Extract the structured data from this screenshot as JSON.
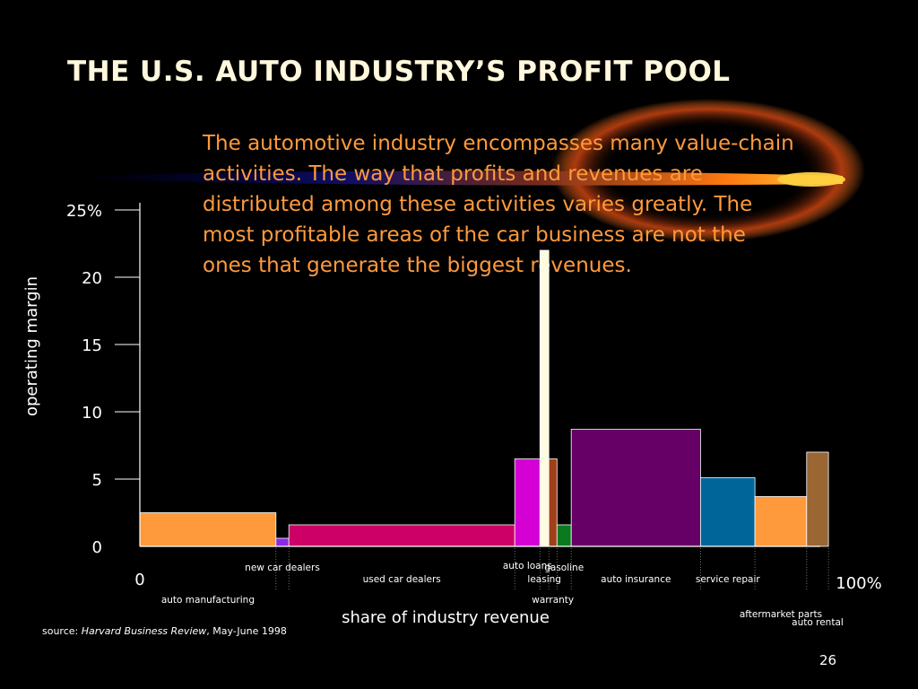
{
  "slide": {
    "title": "THE U.S. AUTO INDUSTRY’S PROFIT POOL",
    "intro": "The automotive industry encompasses many value-chain activities.  The way that profits and revenues are distributed among these activities varies greatly.  The most profitable areas of the car business are not the ones that generate the biggest revenues.",
    "source_prefix": "source: ",
    "source_publication": "Harvard Business Review",
    "source_suffix": ", May-June 1998",
    "page_number": "26"
  },
  "chart_data": {
    "type": "bar",
    "subtype": "variable-width (profit pool)",
    "xlabel": "share of industry revenue",
    "ylabel": "operating margin",
    "xlim": [
      0,
      100
    ],
    "ylim": [
      0,
      25
    ],
    "x_tick_labels": [
      "0",
      "100%"
    ],
    "y_ticks": [
      0,
      5,
      10,
      15,
      20,
      25
    ],
    "y_tick_labels": [
      "0",
      "5",
      "10",
      "15",
      "20",
      "25%"
    ],
    "grid": false,
    "legend": "none",
    "segments": [
      {
        "label": "auto manufacturing",
        "start": 0,
        "share": 20.0,
        "margin": 2.5,
        "color": "#ff9a3c",
        "label_row": 2
      },
      {
        "label": "new car dealers",
        "start": 20.0,
        "share": 1.9,
        "margin": 0.6,
        "color": "#8a2be2",
        "label_row": 0
      },
      {
        "label": "used car dealers",
        "start": 21.9,
        "share": 33.2,
        "margin": 1.6,
        "color": "#cc0066",
        "label_row": 1
      },
      {
        "label": "auto loans",
        "start": 55.1,
        "share": 3.7,
        "margin": 6.5,
        "color": "#d400d4",
        "label_row": -1
      },
      {
        "label": "leasing",
        "start": 58.8,
        "share": 1.3,
        "margin": 22.0,
        "color": "#fffbe0",
        "label_row": 1
      },
      {
        "label": "warranty",
        "start": 60.1,
        "share": 1.2,
        "margin": 6.5,
        "color": "#a0401a",
        "label_row": 2
      },
      {
        "label": "gasoline",
        "start": 61.3,
        "share": 2.1,
        "margin": 1.6,
        "color": "#0a7a1e",
        "label_row": 0
      },
      {
        "label": "auto insurance",
        "start": 63.4,
        "share": 19.0,
        "margin": 8.7,
        "color": "#660066",
        "label_row": 1
      },
      {
        "label": "service repair",
        "start": 82.4,
        "share": 8.0,
        "margin": 5.1,
        "color": "#006699",
        "label_row": 1
      },
      {
        "label": "aftermarket parts",
        "start": 90.4,
        "share": 7.6,
        "margin": 3.7,
        "color": "#ff9a3c",
        "label_row": 3
      },
      {
        "label": "auto rental",
        "start": 98.0,
        "share": 3.2,
        "margin": 7.0,
        "color": "#9a6633",
        "label_row": 4
      }
    ]
  }
}
